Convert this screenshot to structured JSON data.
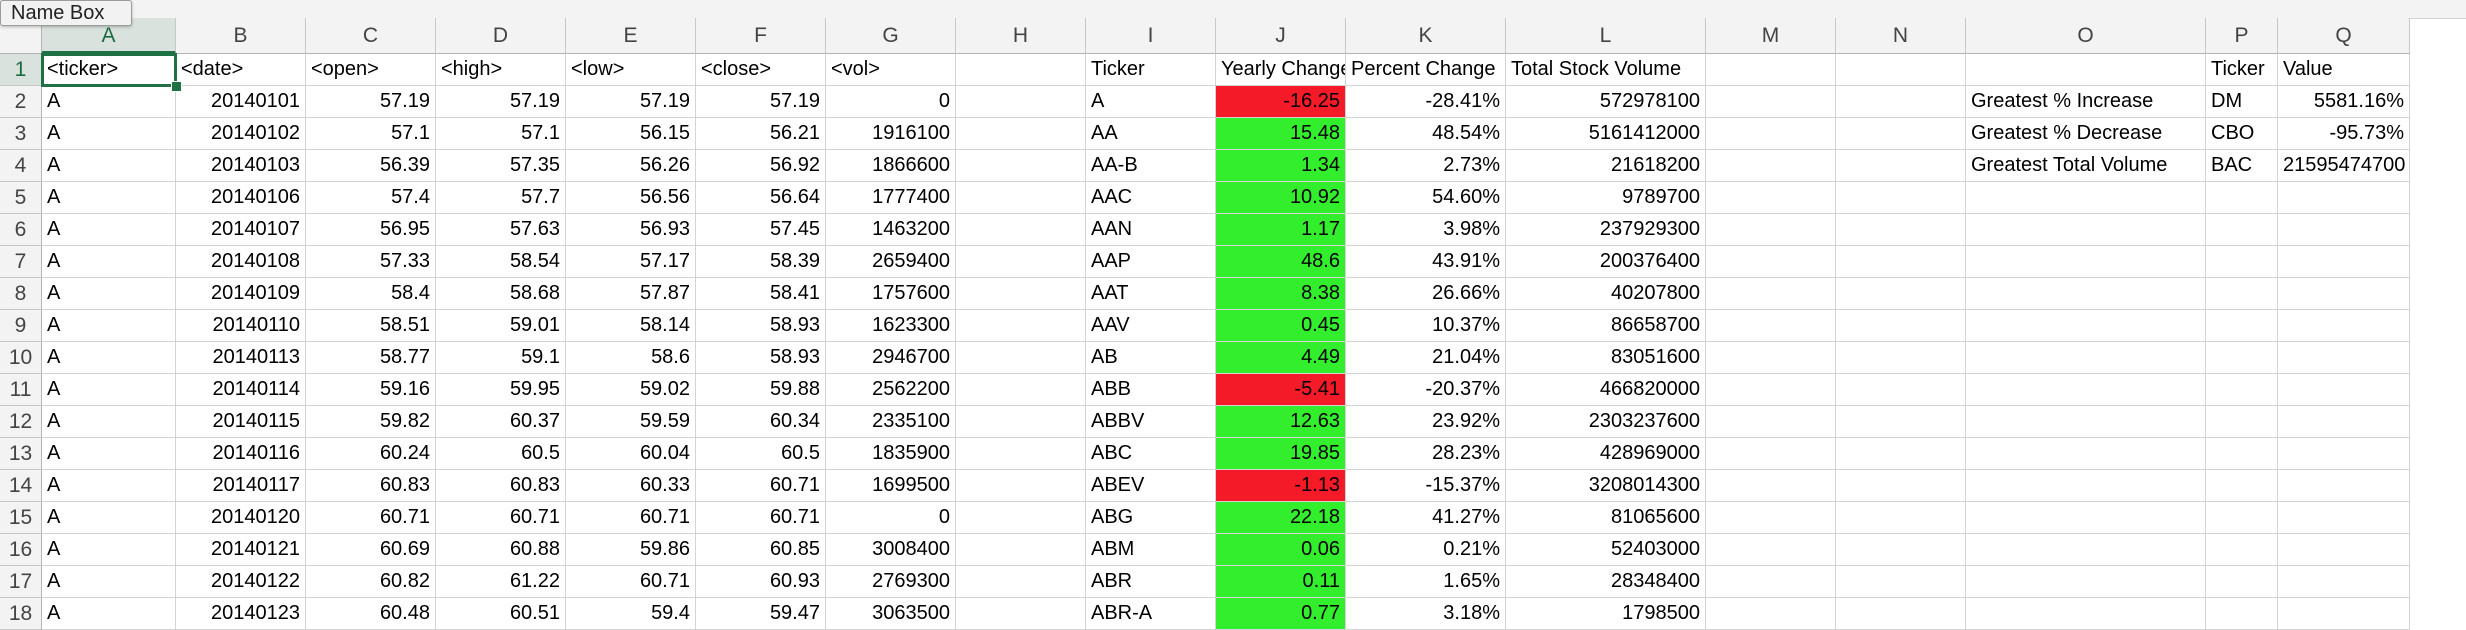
{
  "name_box": {
    "label": "Name Box"
  },
  "columns": [
    "A",
    "B",
    "C",
    "D",
    "E",
    "F",
    "G",
    "H",
    "I",
    "J",
    "K",
    "L",
    "M",
    "N",
    "O",
    "P",
    "Q"
  ],
  "row_numbers": [
    "1",
    "2",
    "3",
    "4",
    "5",
    "6",
    "7",
    "8",
    "9",
    "10",
    "11",
    "12",
    "13",
    "14",
    "15",
    "16",
    "17",
    "18"
  ],
  "active_cell": {
    "column": "A",
    "row": "1"
  },
  "colors": {
    "positive_fill": "#33ee2d",
    "negative_fill": "#f51a28",
    "selection": "#1e7145"
  },
  "raw_data": {
    "headers": [
      "<ticker>",
      "<date>",
      "<open>",
      "<high>",
      "<low>",
      "<close>",
      "<vol>"
    ],
    "rows": [
      [
        "A",
        "20140101",
        "57.19",
        "57.19",
        "57.19",
        "57.19",
        "0"
      ],
      [
        "A",
        "20140102",
        "57.1",
        "57.1",
        "56.15",
        "56.21",
        "1916100"
      ],
      [
        "A",
        "20140103",
        "56.39",
        "57.35",
        "56.26",
        "56.92",
        "1866600"
      ],
      [
        "A",
        "20140106",
        "57.4",
        "57.7",
        "56.56",
        "56.64",
        "1777400"
      ],
      [
        "A",
        "20140107",
        "56.95",
        "57.63",
        "56.93",
        "57.45",
        "1463200"
      ],
      [
        "A",
        "20140108",
        "57.33",
        "58.54",
        "57.17",
        "58.39",
        "2659400"
      ],
      [
        "A",
        "20140109",
        "58.4",
        "58.68",
        "57.87",
        "58.41",
        "1757600"
      ],
      [
        "A",
        "20140110",
        "58.51",
        "59.01",
        "58.14",
        "58.93",
        "1623300"
      ],
      [
        "A",
        "20140113",
        "58.77",
        "59.1",
        "58.6",
        "58.93",
        "2946700"
      ],
      [
        "A",
        "20140114",
        "59.16",
        "59.95",
        "59.02",
        "59.88",
        "2562200"
      ],
      [
        "A",
        "20140115",
        "59.82",
        "60.37",
        "59.59",
        "60.34",
        "2335100"
      ],
      [
        "A",
        "20140116",
        "60.24",
        "60.5",
        "60.04",
        "60.5",
        "1835900"
      ],
      [
        "A",
        "20140117",
        "60.83",
        "60.83",
        "60.33",
        "60.71",
        "1699500"
      ],
      [
        "A",
        "20140120",
        "60.71",
        "60.71",
        "60.71",
        "60.71",
        "0"
      ],
      [
        "A",
        "20140121",
        "60.69",
        "60.88",
        "59.86",
        "60.85",
        "3008400"
      ],
      [
        "A",
        "20140122",
        "60.82",
        "61.22",
        "60.71",
        "60.93",
        "2769300"
      ],
      [
        "A",
        "20140123",
        "60.48",
        "60.51",
        "59.4",
        "59.47",
        "3063500"
      ]
    ]
  },
  "summary": {
    "headers": [
      "Ticker",
      "Yearly Change",
      "Percent Change",
      "Total Stock Volume"
    ],
    "rows": [
      [
        "A",
        "-16.25",
        "-28.41%",
        "572978100"
      ],
      [
        "AA",
        "15.48",
        "48.54%",
        "5161412000"
      ],
      [
        "AA-B",
        "1.34",
        "2.73%",
        "21618200"
      ],
      [
        "AAC",
        "10.92",
        "54.60%",
        "9789700"
      ],
      [
        "AAN",
        "1.17",
        "3.98%",
        "237929300"
      ],
      [
        "AAP",
        "48.6",
        "43.91%",
        "200376400"
      ],
      [
        "AAT",
        "8.38",
        "26.66%",
        "40207800"
      ],
      [
        "AAV",
        "0.45",
        "10.37%",
        "86658700"
      ],
      [
        "AB",
        "4.49",
        "21.04%",
        "83051600"
      ],
      [
        "ABB",
        "-5.41",
        "-20.37%",
        "466820000"
      ],
      [
        "ABBV",
        "12.63",
        "23.92%",
        "2303237600"
      ],
      [
        "ABC",
        "19.85",
        "28.23%",
        "428969000"
      ],
      [
        "ABEV",
        "-1.13",
        "-15.37%",
        "3208014300"
      ],
      [
        "ABG",
        "22.18",
        "41.27%",
        "81065600"
      ],
      [
        "ABM",
        "0.06",
        "0.21%",
        "52403000"
      ],
      [
        "ABR",
        "0.11",
        "1.65%",
        "28348400"
      ],
      [
        "ABR-A",
        "0.77",
        "3.18%",
        "1798500"
      ]
    ]
  },
  "greatest": {
    "headers": [
      "Ticker",
      "Value"
    ],
    "rows": [
      [
        "Greatest % Increase",
        "DM",
        "5581.16%"
      ],
      [
        "Greatest % Decrease",
        "CBO",
        "-95.73%"
      ],
      [
        "Greatest Total Volume",
        "BAC",
        "21595474700"
      ]
    ]
  }
}
